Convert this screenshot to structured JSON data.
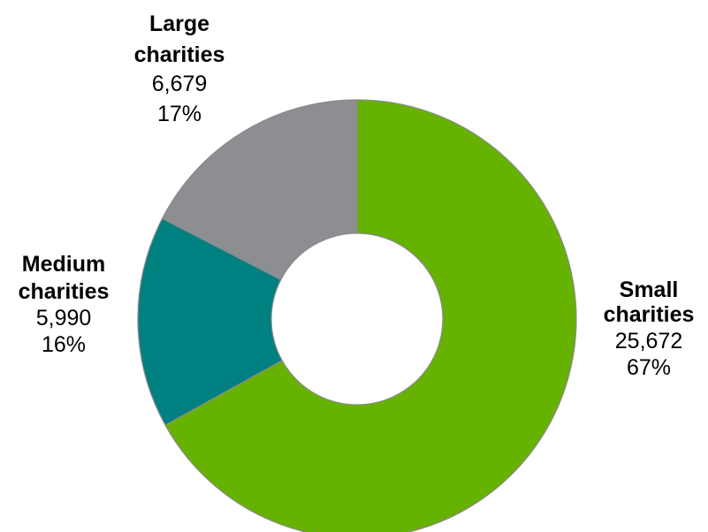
{
  "chart_data": {
    "type": "pie",
    "donut": true,
    "title": "",
    "slices": [
      {
        "name_lines": [
          "Small",
          "charities"
        ],
        "value": 25672,
        "value_label": "25,672",
        "percent_label": "67%",
        "color": "#66b200"
      },
      {
        "name_lines": [
          "Medium",
          "charities"
        ],
        "value": 5990,
        "value_label": "5,990",
        "percent_label": "16%",
        "color": "#008080"
      },
      {
        "name_lines": [
          "Large",
          "charities"
        ],
        "value": 6679,
        "value_label": "6,679",
        "percent_label": "17%",
        "color": "#8c8e91"
      }
    ],
    "start_angle": "12 o'clock",
    "direction": "clockwise",
    "legend": "none"
  }
}
